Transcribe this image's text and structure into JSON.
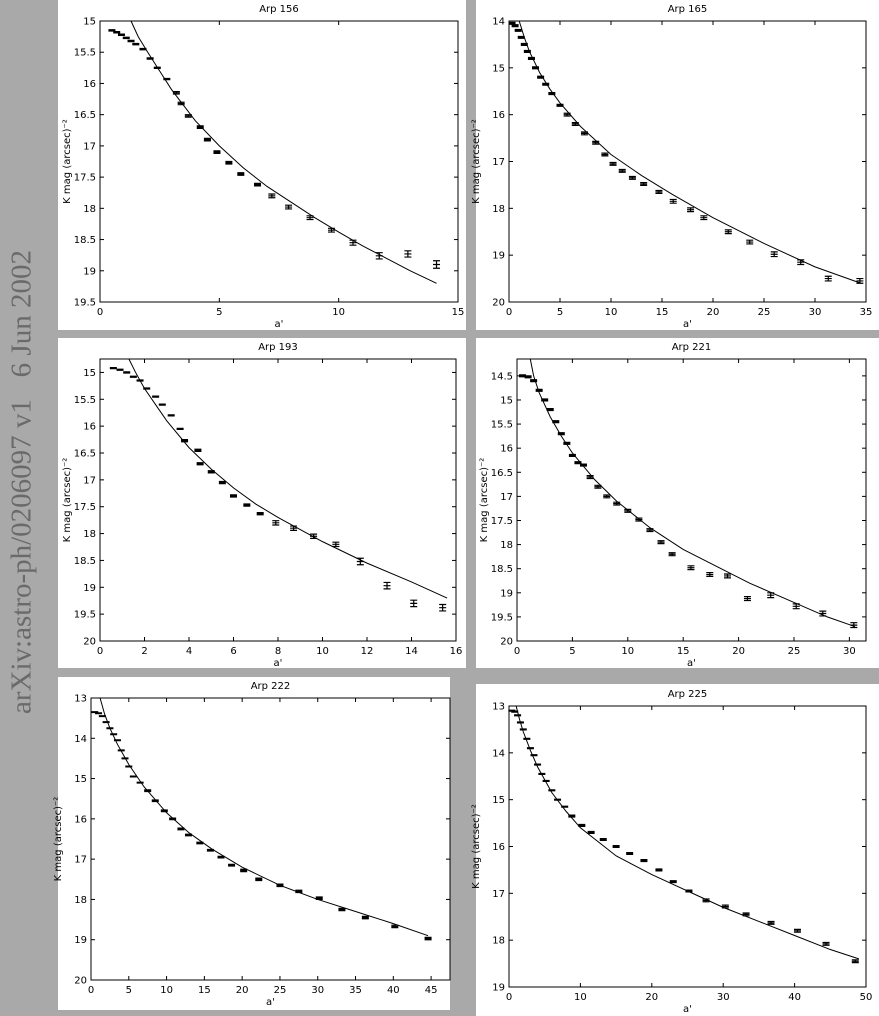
{
  "sidebar": "arXiv:astro-ph/0206097 v1   6 Jun 2002",
  "chart_data": [
    {
      "type": "scatter",
      "title": "Arp 156",
      "x_label": "a'",
      "y_label": "K mag (arcsec)⁻²",
      "color": "#000000",
      "y_inverted": true,
      "xlim": [
        0,
        15
      ],
      "ylim": [
        15,
        19.5
      ],
      "xticks": [
        0,
        5,
        10,
        15
      ],
      "yticks": [
        15,
        15.5,
        16,
        16.5,
        17,
        17.5,
        18,
        18.5,
        19,
        19.5
      ],
      "points": {
        "x": [
          0.5,
          0.7,
          0.9,
          1.1,
          1.3,
          1.5,
          1.8,
          2.1,
          2.4,
          2.8,
          3.2,
          3.4,
          3.7,
          4.2,
          4.5,
          4.9,
          5.4,
          5.9,
          6.6,
          7.2,
          7.9,
          8.8,
          9.7,
          10.6,
          11.7,
          12.9,
          14.1
        ],
        "y": [
          15.15,
          15.18,
          15.22,
          15.27,
          15.32,
          15.37,
          15.45,
          15.6,
          15.75,
          15.93,
          16.15,
          16.32,
          16.52,
          16.7,
          16.9,
          17.1,
          17.27,
          17.45,
          17.62,
          17.8,
          17.98,
          18.15,
          18.35,
          18.55,
          18.76,
          18.73,
          18.9
        ],
        "err": [
          0.01,
          0.01,
          0.01,
          0.01,
          0.01,
          0.01,
          0.01,
          0.01,
          0.01,
          0.01,
          0.02,
          0.02,
          0.02,
          0.02,
          0.02,
          0.02,
          0.02,
          0.02,
          0.02,
          0.03,
          0.03,
          0.03,
          0.03,
          0.04,
          0.05,
          0.05,
          0.06
        ]
      },
      "fit": {
        "x": [
          1.3,
          1.6,
          2,
          2.5,
          3,
          4,
          5,
          6,
          7,
          8,
          9,
          10,
          11,
          12,
          13,
          14.1
        ],
        "y": [
          15,
          15.25,
          15.5,
          15.8,
          16.1,
          16.6,
          17.0,
          17.35,
          17.65,
          17.9,
          18.15,
          18.38,
          18.6,
          18.8,
          19.0,
          19.2
        ]
      }
    },
    {
      "type": "scatter",
      "title": "Arp 165",
      "x_label": "a'",
      "y_label": "K mag (arcsec)⁻²",
      "color": "#000000",
      "y_inverted": true,
      "xlim": [
        0,
        35
      ],
      "ylim": [
        14,
        20
      ],
      "xticks": [
        0,
        5,
        10,
        15,
        20,
        25,
        30,
        35
      ],
      "yticks": [
        14,
        15,
        16,
        17,
        18,
        19,
        20
      ],
      "points": {
        "x": [
          0.3,
          0.6,
          0.9,
          1.2,
          1.5,
          1.8,
          2.2,
          2.6,
          3.1,
          3.6,
          4.2,
          5.0,
          5.7,
          6.5,
          7.4,
          8.5,
          9.4,
          10.2,
          11.1,
          12.1,
          13.2,
          14.7,
          16.1,
          17.8,
          19.1,
          21.5,
          23.6,
          26.0,
          28.6,
          31.3,
          34.4
        ],
        "y": [
          14.05,
          14.1,
          14.2,
          14.35,
          14.5,
          14.65,
          14.8,
          15.0,
          15.2,
          15.35,
          15.55,
          15.8,
          16.0,
          16.2,
          16.4,
          16.6,
          16.85,
          17.05,
          17.2,
          17.35,
          17.48,
          17.65,
          17.85,
          18.03,
          18.2,
          18.5,
          18.72,
          18.98,
          19.15,
          19.5,
          19.55
        ],
        "err": [
          0.02,
          0.02,
          0.02,
          0.02,
          0.02,
          0.02,
          0.02,
          0.02,
          0.02,
          0.02,
          0.02,
          0.02,
          0.03,
          0.03,
          0.03,
          0.03,
          0.03,
          0.03,
          0.03,
          0.03,
          0.03,
          0.03,
          0.04,
          0.04,
          0.04,
          0.04,
          0.04,
          0.05,
          0.05,
          0.05,
          0.05
        ]
      },
      "fit": {
        "x": [
          1,
          1.5,
          2,
          3,
          4,
          5,
          7,
          10,
          13,
          16,
          20,
          25,
          30,
          34.5
        ],
        "y": [
          14,
          14.35,
          14.65,
          15.1,
          15.45,
          15.75,
          16.25,
          16.85,
          17.3,
          17.7,
          18.2,
          18.75,
          19.25,
          19.6
        ]
      }
    },
    {
      "type": "scatter",
      "title": "Arp 193",
      "x_label": "a'",
      "y_label": "K mag (arcsec)⁻²",
      "color": "#000000",
      "y_inverted": true,
      "xlim": [
        0,
        16
      ],
      "ylim": [
        14.75,
        20
      ],
      "xticks": [
        0,
        2,
        4,
        6,
        8,
        10,
        12,
        14,
        16
      ],
      "yticks": [
        15,
        15.5,
        16,
        16.5,
        17,
        17.5,
        18,
        18.5,
        19,
        19.5,
        20
      ],
      "points": {
        "x": [
          0.6,
          0.9,
          1.2,
          1.5,
          1.8,
          2.1,
          2.5,
          2.8,
          3.2,
          3.6,
          3.8,
          4.4,
          4.5,
          5,
          5.5,
          6.0,
          6.6,
          7.2,
          7.9,
          8.7,
          9.6,
          10.6,
          11.7,
          12.9,
          14.1,
          15.4
        ],
        "y": [
          14.92,
          14.95,
          15.0,
          15.08,
          15.15,
          15.3,
          15.45,
          15.6,
          15.8,
          16.05,
          16.27,
          16.45,
          16.7,
          16.85,
          17.05,
          17.3,
          17.47,
          17.63,
          17.8,
          17.9,
          18.05,
          18.2,
          18.52,
          18.97,
          19.3,
          19.38
        ],
        "err": [
          0.01,
          0.01,
          0.01,
          0.01,
          0.01,
          0.01,
          0.01,
          0.01,
          0.01,
          0.01,
          0.02,
          0.02,
          0.02,
          0.02,
          0.02,
          0.02,
          0.02,
          0.02,
          0.04,
          0.04,
          0.04,
          0.04,
          0.06,
          0.06,
          0.06,
          0.06
        ]
      },
      "fit": {
        "x": [
          1.3,
          1.6,
          2,
          2.5,
          3,
          4,
          5,
          6,
          7,
          8,
          10,
          12,
          14,
          15.6
        ],
        "y": [
          14.75,
          15.0,
          15.3,
          15.6,
          15.9,
          16.4,
          16.8,
          17.15,
          17.45,
          17.7,
          18.15,
          18.55,
          18.9,
          19.2
        ]
      }
    },
    {
      "type": "scatter",
      "title": "Arp 221",
      "x_label": "a'",
      "y_label": "K mag (arcsec)⁻²",
      "color": "#000000",
      "y_inverted": true,
      "xlim": [
        0,
        31.5
      ],
      "ylim": [
        14.15,
        20
      ],
      "xticks": [
        0,
        5,
        10,
        15,
        20,
        25,
        30
      ],
      "yticks": [
        14.5,
        15,
        15.5,
        16,
        16.5,
        17,
        17.5,
        18,
        18.5,
        19,
        19.5,
        20
      ],
      "points": {
        "x": [
          0.5,
          1,
          1.5,
          2,
          2.5,
          3,
          3.5,
          4,
          4.5,
          5,
          5.5,
          6,
          6.6,
          7.3,
          8.1,
          9,
          10,
          11,
          12,
          13,
          14,
          15.7,
          17.4,
          19,
          20.8,
          22.9,
          25.2,
          27.6,
          30.4
        ],
        "y": [
          14.5,
          14.52,
          14.6,
          14.8,
          15.0,
          15.2,
          15.45,
          15.7,
          15.9,
          16.15,
          16.3,
          16.35,
          16.6,
          16.8,
          17.0,
          17.15,
          17.3,
          17.48,
          17.7,
          17.95,
          18.2,
          18.48,
          18.62,
          18.65,
          19.12,
          19.05,
          19.28,
          19.43,
          19.67
        ],
        "err": [
          0.02,
          0.02,
          0.02,
          0.02,
          0.02,
          0.02,
          0.02,
          0.02,
          0.02,
          0.02,
          0.02,
          0.02,
          0.03,
          0.03,
          0.03,
          0.03,
          0.03,
          0.03,
          0.03,
          0.03,
          0.03,
          0.04,
          0.04,
          0.04,
          0.04,
          0.05,
          0.05,
          0.05,
          0.05
        ]
      },
      "fit": {
        "x": [
          1.2,
          1.5,
          2,
          3,
          4,
          5,
          7,
          9,
          12,
          15,
          18,
          21,
          25,
          28,
          30.5
        ],
        "y": [
          14.15,
          14.5,
          14.85,
          15.35,
          15.75,
          16.1,
          16.65,
          17.1,
          17.65,
          18.1,
          18.45,
          18.8,
          19.2,
          19.5,
          19.7
        ]
      }
    },
    {
      "type": "scatter",
      "title": "Arp 222",
      "x_label": "a'",
      "y_label": "K mag (arcsec)⁻²",
      "color": "#000000",
      "y_inverted": true,
      "xlim": [
        0,
        47.5
      ],
      "ylim": [
        13,
        20
      ],
      "xticks": [
        0,
        5,
        10,
        15,
        20,
        25,
        30,
        35,
        40,
        45
      ],
      "yticks": [
        13,
        14,
        15,
        16,
        17,
        18,
        19,
        20
      ],
      "points": {
        "x": [
          0.5,
          1,
          1.5,
          2,
          2.5,
          3,
          3.5,
          4,
          4.5,
          5,
          5.6,
          6.5,
          7.5,
          8.5,
          9.7,
          10.8,
          11.9,
          12.9,
          14.4,
          15.8,
          17.2,
          18.6,
          20.2,
          22.2,
          25,
          27.5,
          30.2,
          33.2,
          36.3,
          40.2,
          44.6
        ],
        "y": [
          13.35,
          13.38,
          13.45,
          13.6,
          13.75,
          13.9,
          14.05,
          14.3,
          14.5,
          14.7,
          14.95,
          15.1,
          15.3,
          15.55,
          15.8,
          16.0,
          16.25,
          16.4,
          16.6,
          16.78,
          16.95,
          17.15,
          17.28,
          17.5,
          17.65,
          17.8,
          17.97,
          18.25,
          18.45,
          18.67,
          18.97
        ],
        "err": [
          0.01,
          0.01,
          0.01,
          0.01,
          0.01,
          0.01,
          0.01,
          0.01,
          0.01,
          0.01,
          0.01,
          0.01,
          0.02,
          0.02,
          0.02,
          0.02,
          0.02,
          0.02,
          0.02,
          0.02,
          0.02,
          0.02,
          0.03,
          0.03,
          0.03,
          0.03,
          0.03,
          0.03,
          0.03,
          0.03,
          0.03
        ]
      },
      "fit": {
        "x": [
          1.2,
          1.8,
          2.5,
          3.5,
          5,
          7,
          10,
          13,
          16,
          20,
          25,
          30,
          35,
          40,
          44.6
        ],
        "y": [
          13,
          13.4,
          13.75,
          14.15,
          14.65,
          15.2,
          15.85,
          16.35,
          16.75,
          17.2,
          17.65,
          18.0,
          18.3,
          18.6,
          18.9
        ]
      }
    },
    {
      "type": "scatter",
      "title": "Arp 225",
      "x_label": "a'",
      "y_label": "K mag (arcsec)⁻²",
      "color": "#000000",
      "y_inverted": true,
      "xlim": [
        0,
        50
      ],
      "ylim": [
        13,
        19
      ],
      "xticks": [
        0,
        10,
        20,
        30,
        40,
        50
      ],
      "yticks": [
        13,
        14,
        15,
        16,
        17,
        18,
        19
      ],
      "points": {
        "x": [
          0.4,
          0.8,
          1.2,
          1.6,
          2,
          2.5,
          3,
          3.5,
          4,
          4.6,
          5.2,
          6,
          6.8,
          7.8,
          8.8,
          10.2,
          11.5,
          13.2,
          15,
          16.9,
          18.9,
          21,
          23,
          25.2,
          27.6,
          30.3,
          33.2,
          36.7,
          40.4,
          44.4,
          48.5
        ],
        "y": [
          13.1,
          13.12,
          13.2,
          13.35,
          13.5,
          13.7,
          13.9,
          14.05,
          14.25,
          14.45,
          14.6,
          14.8,
          15.0,
          15.15,
          15.35,
          15.55,
          15.7,
          15.85,
          16.0,
          16.15,
          16.3,
          16.5,
          16.75,
          16.95,
          17.15,
          17.28,
          17.45,
          17.63,
          17.8,
          18.08,
          18.45
        ],
        "err": [
          0.01,
          0.01,
          0.01,
          0.01,
          0.01,
          0.01,
          0.01,
          0.01,
          0.01,
          0.01,
          0.01,
          0.01,
          0.01,
          0.01,
          0.02,
          0.02,
          0.02,
          0.02,
          0.02,
          0.02,
          0.02,
          0.02,
          0.02,
          0.02,
          0.03,
          0.03,
          0.03,
          0.03,
          0.03,
          0.03,
          0.03
        ]
      },
      "fit": {
        "x": [
          1,
          1.5,
          2,
          3,
          4,
          6,
          8,
          10,
          15,
          20,
          25,
          30,
          35,
          40,
          45,
          49
        ],
        "y": [
          13,
          13.3,
          13.55,
          13.95,
          14.3,
          14.85,
          15.25,
          15.6,
          16.2,
          16.6,
          16.95,
          17.3,
          17.6,
          17.9,
          18.2,
          18.4
        ]
      }
    }
  ]
}
